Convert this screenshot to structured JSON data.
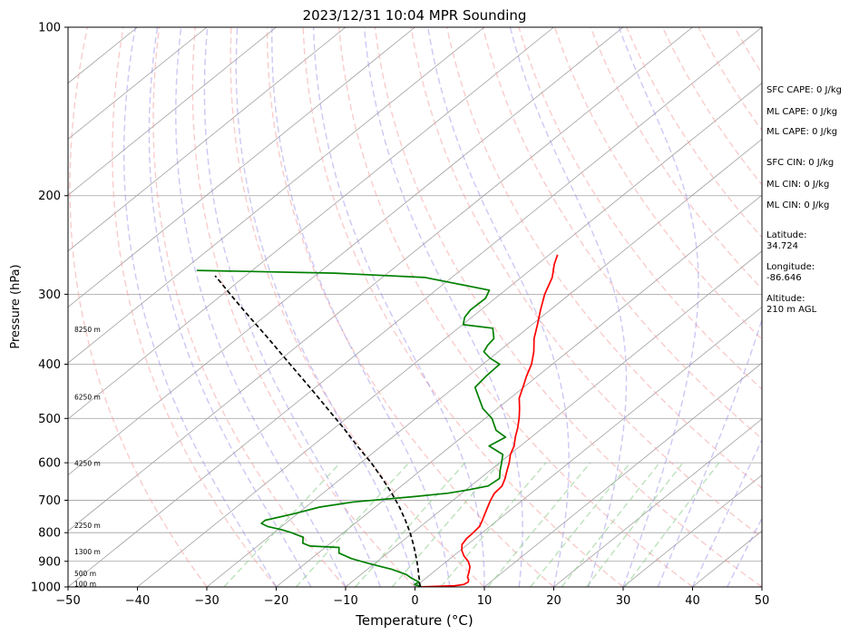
{
  "chart_data": {
    "type": "line",
    "title": "2023/12/31 10:04 MPR Sounding",
    "xlabel": "Temperature (°C)",
    "ylabel": "Pressure (hPa)",
    "xlim": [
      -50,
      50
    ],
    "ylim": [
      1000,
      100
    ],
    "y_scale": "log",
    "grid": true,
    "skew_t": true,
    "x_ticks": [
      "−50",
      "−40",
      "−30",
      "−20",
      "−10",
      "0",
      "10",
      "20",
      "30",
      "40",
      "50"
    ],
    "y_ticks": [
      "100",
      "200",
      "300",
      "400",
      "500",
      "600",
      "700",
      "800",
      "900",
      "1000"
    ],
    "series": [
      {
        "name": "",
        "color": "#ff0000",
        "x_pressure": [
          1000,
          995,
          990,
          980,
          970,
          960,
          940,
          920,
          900,
          880,
          860,
          840,
          820,
          800,
          780,
          760,
          740,
          720,
          700,
          680,
          660,
          640,
          620,
          600,
          580,
          560,
          540,
          520,
          500,
          480,
          460,
          440,
          420,
          400,
          380,
          360,
          340,
          320,
          300,
          280,
          265,
          255
        ],
        "values": [
          0.8,
          5.5,
          6.6,
          6.8,
          6.4,
          5.8,
          5.1,
          4.3,
          3.1,
          1.5,
          0.2,
          -0.8,
          -1.2,
          -1.3,
          -1.5,
          -2.2,
          -3.0,
          -3.8,
          -4.6,
          -5.3,
          -5.5,
          -6.4,
          -7.5,
          -8.6,
          -9.9,
          -10.9,
          -12.3,
          -13.6,
          -15.1,
          -16.8,
          -18.7,
          -20.1,
          -21.6,
          -23.0,
          -24.9,
          -27.2,
          -29.2,
          -31.4,
          -33.6,
          -35.5,
          -37.6,
          -38.8
        ]
      },
      {
        "name": "",
        "color": "#008000",
        "x_pressure": [
          1000,
          990,
          980,
          965,
          950,
          930,
          910,
          890,
          870,
          860,
          850,
          845,
          835,
          825,
          815,
          800,
          790,
          780,
          770,
          760,
          740,
          720,
          705,
          690,
          680,
          670,
          660,
          640,
          620,
          600,
          580,
          560,
          540,
          525,
          500,
          480,
          460,
          440,
          420,
          400,
          390,
          380,
          370,
          360,
          345,
          340,
          330,
          320,
          305,
          295,
          280,
          275,
          272
        ],
        "values": [
          1.0,
          -0.5,
          -0.3,
          -2.0,
          -3.5,
          -6.5,
          -10.5,
          -14.2,
          -17.0,
          -17.5,
          -18.0,
          -22.5,
          -24.0,
          -24.5,
          -25.0,
          -27.5,
          -29.5,
          -32.0,
          -33.5,
          -33.5,
          -30.5,
          -28.0,
          -24.0,
          -16.5,
          -12.0,
          -9.5,
          -7.5,
          -7.2,
          -8.5,
          -9.7,
          -11.0,
          -14.5,
          -13.7,
          -16.3,
          -19.0,
          -22.1,
          -24.5,
          -27.0,
          -27.4,
          -27.6,
          -30.1,
          -32.1,
          -32.7,
          -33.0,
          -35.0,
          -39.9,
          -41.0,
          -41.5,
          -41.4,
          -42.3,
          -53.8,
          -67.6,
          -88.0
        ]
      },
      {
        "name": "",
        "color": "#000000",
        "dashed": true,
        "x_pressure": [
          1000,
          985,
          970,
          950,
          930,
          900,
          870,
          840,
          800,
          760,
          720,
          680,
          640,
          600,
          560,
          520,
          480,
          440,
          400,
          360,
          320,
          300,
          285,
          278
        ],
        "values": [
          0.8,
          0.0,
          -0.7,
          -1.7,
          -2.7,
          -4.3,
          -6.0,
          -7.8,
          -10.4,
          -13.3,
          -16.5,
          -20.1,
          -24.1,
          -28.5,
          -33.5,
          -38.7,
          -44.5,
          -50.8,
          -57.8,
          -65.5,
          -74.2,
          -78.9,
          -82.6,
          -84.4
        ]
      }
    ],
    "height_labels": [
      {
        "label": "100 m",
        "pressure": 988
      },
      {
        "label": "500 m",
        "pressure": 947
      },
      {
        "label": "1300 m",
        "pressure": 866
      },
      {
        "label": "2250 m",
        "pressure": 778
      },
      {
        "label": "4250 m",
        "pressure": 602
      },
      {
        "label": "6250 m",
        "pressure": 458
      },
      {
        "label": "8250 m",
        "pressure": 347
      }
    ],
    "annotations": {
      "sfc_cape": "SFC CAPE: 0 J/kg",
      "ml_cape_1": "ML CAPE: 0 J/kg",
      "ml_cape_2": "ML CAPE: 0 J/kg",
      "sfc_cin": "SFC CIN: 0 J/kg",
      "ml_cin_1": "ML CIN: 0 J/kg",
      "ml_cin_2": "ML CIN: 0 J/kg",
      "latitude_label": "Latitude:",
      "latitude_value": "34.724",
      "longitude_label": "Longitude:",
      "longitude_value": "-86.646",
      "altitude_label": "Altitude:",
      "altitude_value": "210 m AGL"
    },
    "colors": {
      "temperature": "#ff0000",
      "dewpoint": "#008000",
      "parcel": "#000000",
      "isotherms": "#a0a0a0",
      "dry_adiabats": "#f4a3a3",
      "moist_adiabats": "#8f84e6",
      "mixing_ratio": "#8fcf8f"
    }
  }
}
